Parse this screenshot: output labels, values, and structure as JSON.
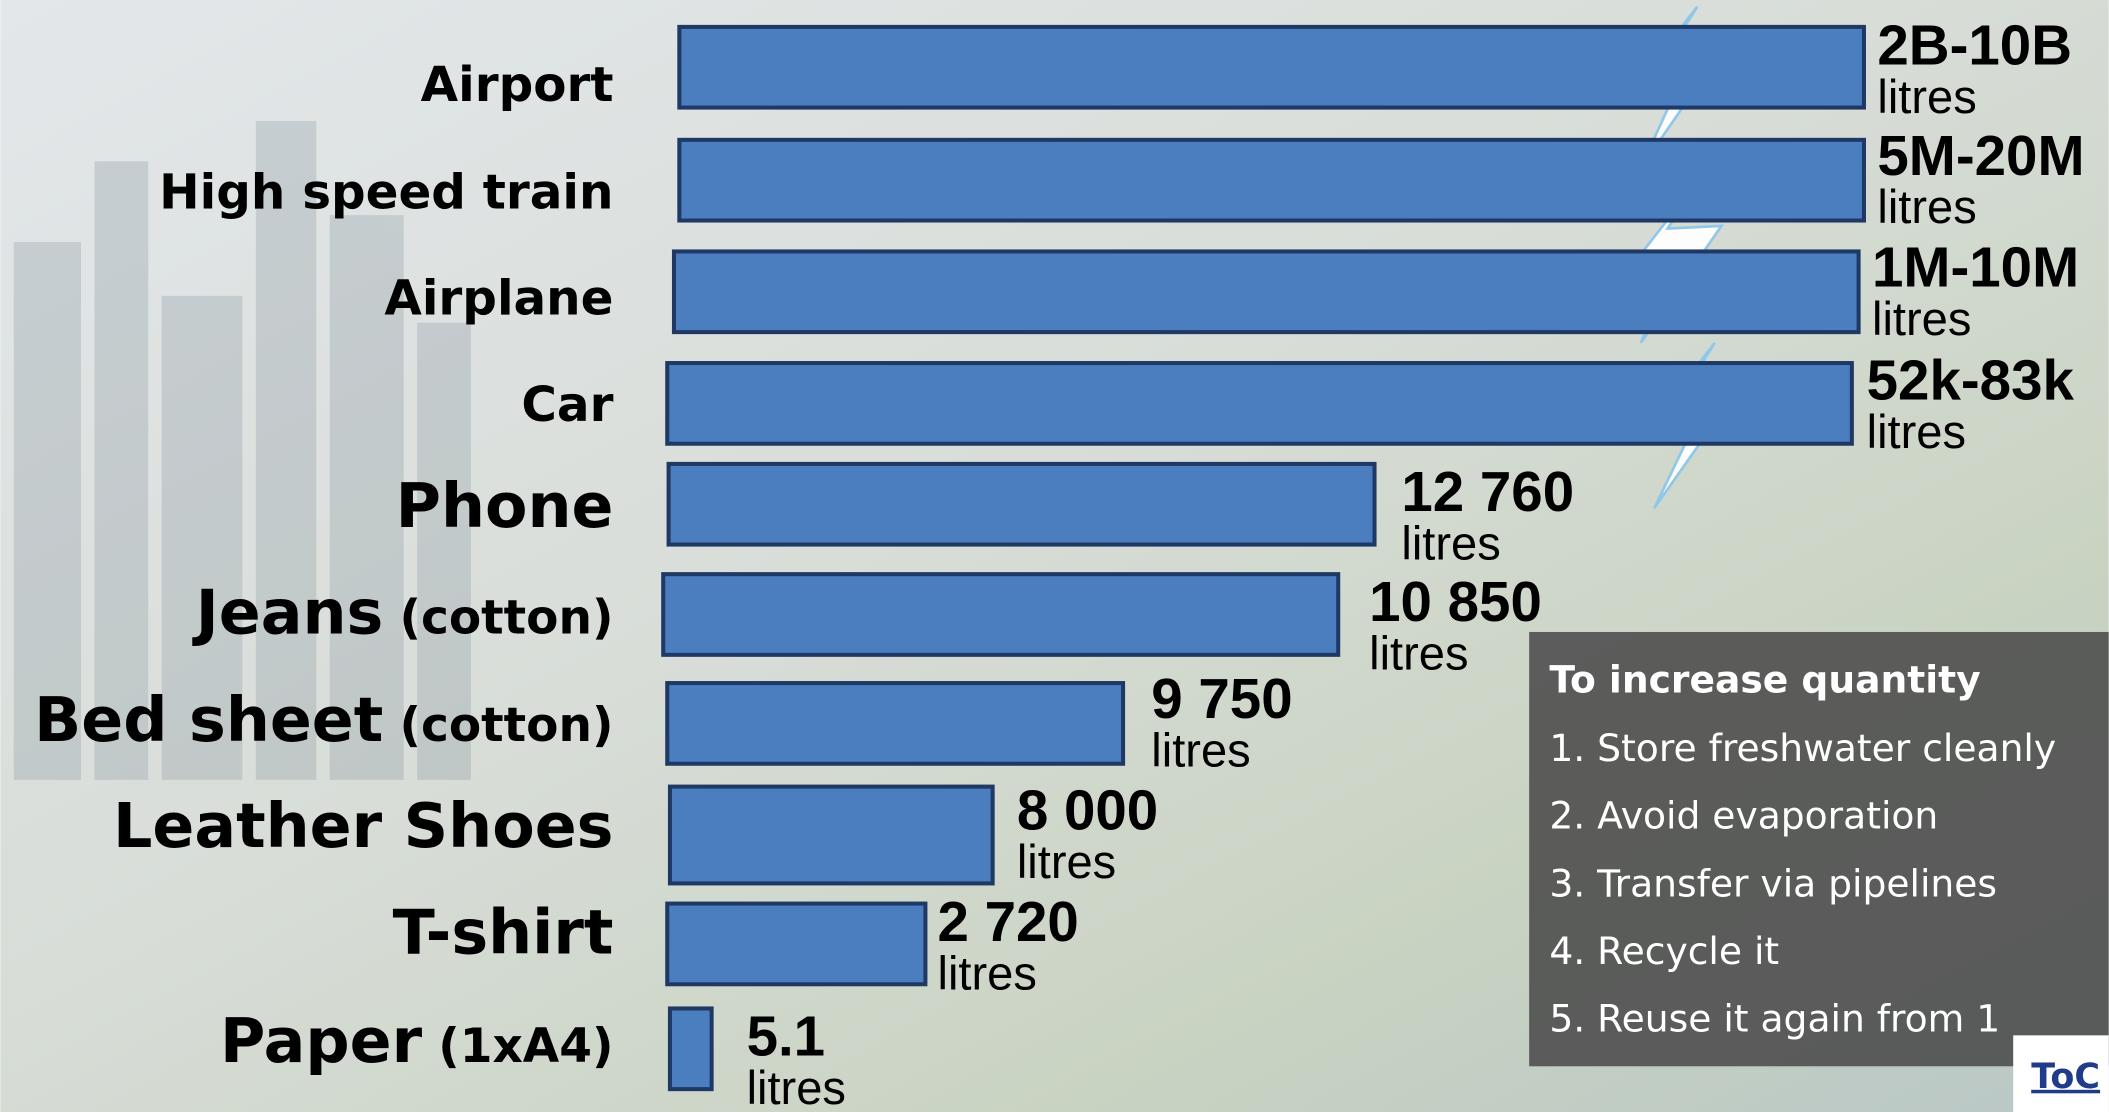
{
  "rows": [
    {
      "name": "Airport",
      "amount": "2B-10B",
      "unit": "litres"
    },
    {
      "name": "High speed train",
      "amount": "5M-20M",
      "unit": "litres"
    },
    {
      "name": "Airplane",
      "amount": "1M-10M",
      "unit": "litres"
    },
    {
      "name": "Car",
      "amount": "52k-83k",
      "unit": "litres"
    },
    {
      "name": "Phone",
      "amount": "12 760",
      "unit": "litres"
    },
    {
      "name": "Jeans",
      "detail": "(cotton)",
      "amount": "10 850",
      "unit": "litres"
    },
    {
      "name": "Bed sheet",
      "detail": "(cotton)",
      "amount": "9 750",
      "unit": "litres"
    },
    {
      "name": "Leather Shoes",
      "amount": "8 000",
      "unit": "litres"
    },
    {
      "name": "T-shirt",
      "amount": "2 720",
      "unit": "litres"
    },
    {
      "name": "Paper",
      "detail": "(1xA4)",
      "amount": "5.1",
      "unit": "litres"
    }
  ],
  "panel": {
    "title": "To increase quantity",
    "items": [
      "1. Store freshwater cleanly",
      "2. Avoid evaporation",
      "3. Transfer via pipelines",
      "4. Recycle it",
      "5. Reuse it again from 1"
    ]
  },
  "link": "ToC"
}
